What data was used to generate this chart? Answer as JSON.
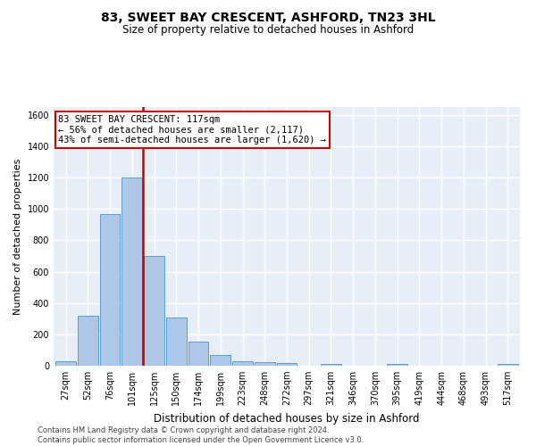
{
  "title": "83, SWEET BAY CRESCENT, ASHFORD, TN23 3HL",
  "subtitle": "Size of property relative to detached houses in Ashford",
  "xlabel": "Distribution of detached houses by size in Ashford",
  "ylabel": "Number of detached properties",
  "bar_color": "#aec6e8",
  "bar_edge_color": "#5a9fd4",
  "background_color": "#e8eef8",
  "grid_color": "white",
  "x_labels": [
    "27sqm",
    "52sqm",
    "76sqm",
    "101sqm",
    "125sqm",
    "150sqm",
    "174sqm",
    "199sqm",
    "223sqm",
    "248sqm",
    "272sqm",
    "297sqm",
    "321sqm",
    "346sqm",
    "370sqm",
    "395sqm",
    "419sqm",
    "444sqm",
    "468sqm",
    "493sqm",
    "517sqm"
  ],
  "bar_heights": [
    30,
    320,
    970,
    1200,
    700,
    305,
    155,
    70,
    30,
    20,
    15,
    0,
    10,
    0,
    0,
    10,
    0,
    0,
    0,
    0,
    10
  ],
  "vline_color": "#cc0000",
  "vline_pos": 3.5,
  "annotation_text": "83 SWEET BAY CRESCENT: 117sqm\n← 56% of detached houses are smaller (2,117)\n43% of semi-detached houses are larger (1,620) →",
  "annotation_box_color": "#cc0000",
  "ylim": [
    0,
    1650
  ],
  "yticks": [
    0,
    200,
    400,
    600,
    800,
    1000,
    1200,
    1400,
    1600
  ],
  "footer": "Contains HM Land Registry data © Crown copyright and database right 2024.\nContains public sector information licensed under the Open Government Licence v3.0.",
  "title_fontsize": 10,
  "subtitle_fontsize": 8.5,
  "ylabel_fontsize": 8,
  "xlabel_fontsize": 8.5,
  "tick_fontsize": 7,
  "footer_fontsize": 6,
  "annotation_fontsize": 7.5
}
